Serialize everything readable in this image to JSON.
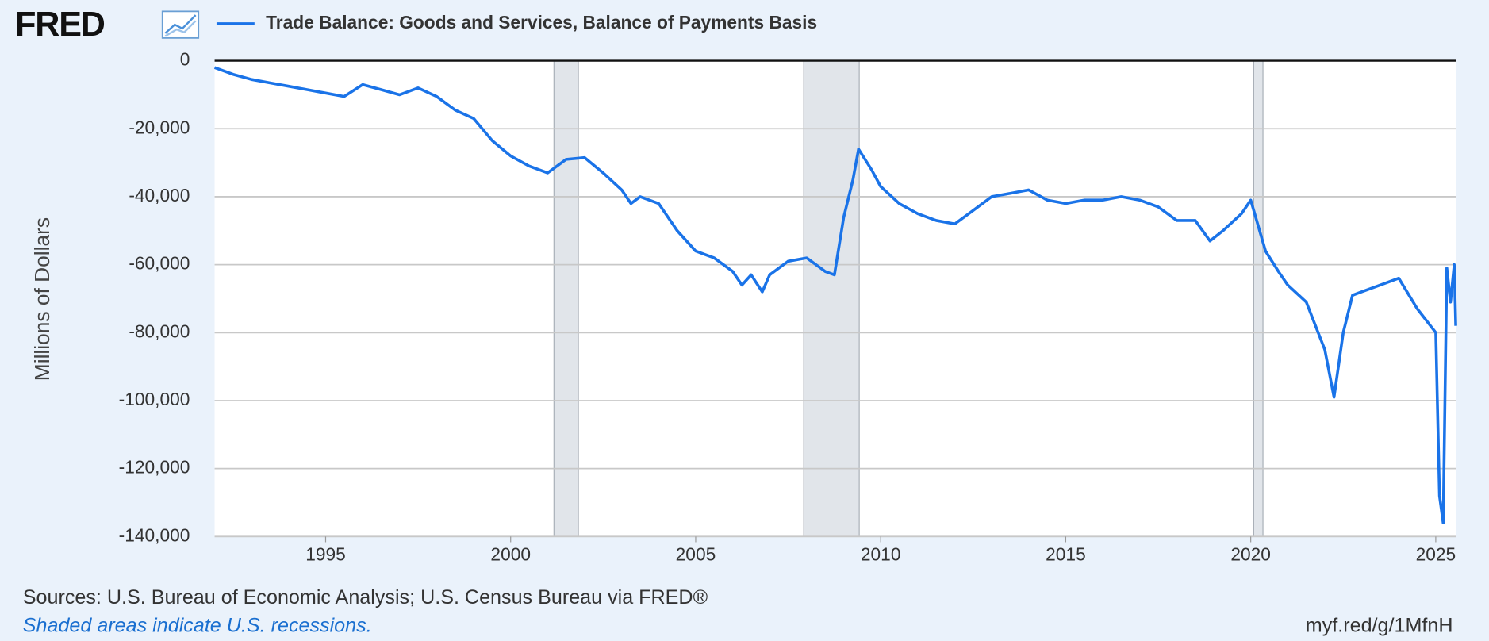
{
  "logo": "FRED",
  "chart_data": {
    "type": "line",
    "title": "Trade Balance: Goods and Services, Balance of Payments Basis",
    "y_label": "Millions of Dollars",
    "x": [
      1992.0,
      1992.5,
      1993.0,
      1993.5,
      1994.0,
      1994.5,
      1995.0,
      1995.5,
      1996.0,
      1996.5,
      1997.0,
      1997.5,
      1998.0,
      1998.5,
      1999.0,
      1999.5,
      2000.0,
      2000.5,
      2001.0,
      2001.5,
      2002.0,
      2002.5,
      2003.0,
      2003.25,
      2003.5,
      2004.0,
      2004.5,
      2005.0,
      2005.5,
      2006.0,
      2006.25,
      2006.5,
      2006.8,
      2007.0,
      2007.5,
      2008.0,
      2008.5,
      2008.75,
      2009.0,
      2009.25,
      2009.4,
      2009.75,
      2010.0,
      2010.5,
      2011.0,
      2011.5,
      2012.0,
      2012.5,
      2013.0,
      2013.5,
      2014.0,
      2014.5,
      2015.0,
      2015.5,
      2016.0,
      2016.5,
      2017.0,
      2017.5,
      2018.0,
      2018.5,
      2018.9,
      2019.25,
      2019.75,
      2020.0,
      2020.4,
      2020.75,
      2021.0,
      2021.5,
      2022.0,
      2022.25,
      2022.5,
      2022.75,
      2023.0,
      2023.5,
      2024.0,
      2024.5,
      2025.0,
      2025.1,
      2025.2,
      2025.3,
      2025.4,
      2025.5,
      2025.54
    ],
    "series": [
      {
        "name": "Trade Balance: Goods and Services, Balance of Payments Basis",
        "color": "#1a73e8",
        "values": [
          -2000,
          -4000,
          -5500,
          -6500,
          -7500,
          -8500,
          -9500,
          -10500,
          -7000,
          -8500,
          -10000,
          -8000,
          -10500,
          -14500,
          -17000,
          -23500,
          -28000,
          -31000,
          -33000,
          -29000,
          -28500,
          -33000,
          -38000,
          -42000,
          -40000,
          -42000,
          -50000,
          -56000,
          -58000,
          -62000,
          -66000,
          -63000,
          -68000,
          -63000,
          -59000,
          -58000,
          -62000,
          -63000,
          -46000,
          -35000,
          -26000,
          -32000,
          -37000,
          -42000,
          -45000,
          -47000,
          -48000,
          -44000,
          -40000,
          -39000,
          -38000,
          -41000,
          -42000,
          -41000,
          -41000,
          -40000,
          -41000,
          -43000,
          -47000,
          -47000,
          -53000,
          -50000,
          -45000,
          -41000,
          -56000,
          -62000,
          -66000,
          -71000,
          -85000,
          -99000,
          -80000,
          -69000,
          -68000,
          -66000,
          -64000,
          -73000,
          -80000,
          -128000,
          -136000,
          -61000,
          -71000,
          -60000,
          -78000
        ]
      }
    ],
    "recessions": [
      [
        2001.17,
        2001.83
      ],
      [
        2007.92,
        2009.42
      ],
      [
        2020.08,
        2020.33
      ]
    ],
    "xlim": [
      1992.0,
      2025.54
    ],
    "xticks": [
      1995,
      2000,
      2005,
      2010,
      2015,
      2020,
      2025
    ],
    "ylim": [
      -140000,
      0
    ],
    "yticks": [
      0,
      {
        "value": -20000,
        "label": "-20,000"
      },
      {
        "value": -40000,
        "label": "-40,000"
      },
      {
        "value": -60000,
        "label": "-60,000"
      },
      {
        "value": -80000,
        "label": "-80,000"
      },
      {
        "value": -100000,
        "label": "-100,000"
      },
      {
        "value": -120000,
        "label": "-120,000"
      },
      {
        "value": -140000,
        "label": "-140,000"
      }
    ],
    "grid": true
  },
  "footer": {
    "sources": "Sources: U.S. Bureau of Economic Analysis; U.S. Census Bureau via FRED®",
    "recession_note": "Shaded areas indicate U.S. recessions.",
    "link": "myf.red/g/1MfnH"
  }
}
